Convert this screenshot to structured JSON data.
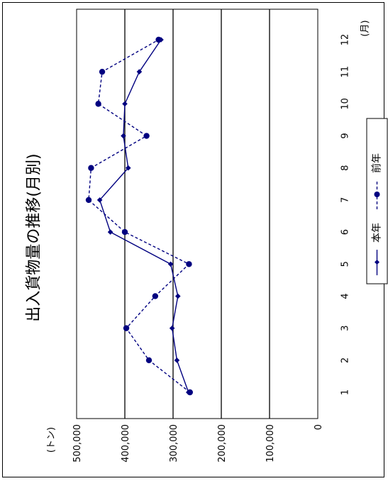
{
  "chart_data": {
    "type": "line",
    "orientation": "rotated-90-ccw",
    "title": "出入貨物量の推移(月別)",
    "x_unit": "(月)",
    "y_unit": "(トン)",
    "categories": [
      "1",
      "2",
      "3",
      "4",
      "5",
      "6",
      "7",
      "8",
      "9",
      "10",
      "11",
      "12"
    ],
    "y_ticks": [
      "0",
      "100,000",
      "200,000",
      "300,000",
      "400,000",
      "500,000"
    ],
    "ylim": [
      0,
      500000
    ],
    "grid": true,
    "legend_position": "right",
    "series": [
      {
        "name": "本年",
        "style": "solid",
        "marker": "diamond",
        "values": [
          268000,
          292000,
          302000,
          290000,
          305000,
          430000,
          452000,
          393000,
          403000,
          400000,
          370000,
          325000
        ]
      },
      {
        "name": "前年",
        "style": "dashed",
        "marker": "circle",
        "values": [
          265000,
          350000,
          397000,
          337000,
          267000,
          400000,
          475000,
          470000,
          355000,
          455000,
          447000,
          330000
        ]
      }
    ]
  },
  "colors": {
    "series": "#000080",
    "grid": "#000000",
    "frame": "#000000"
  }
}
